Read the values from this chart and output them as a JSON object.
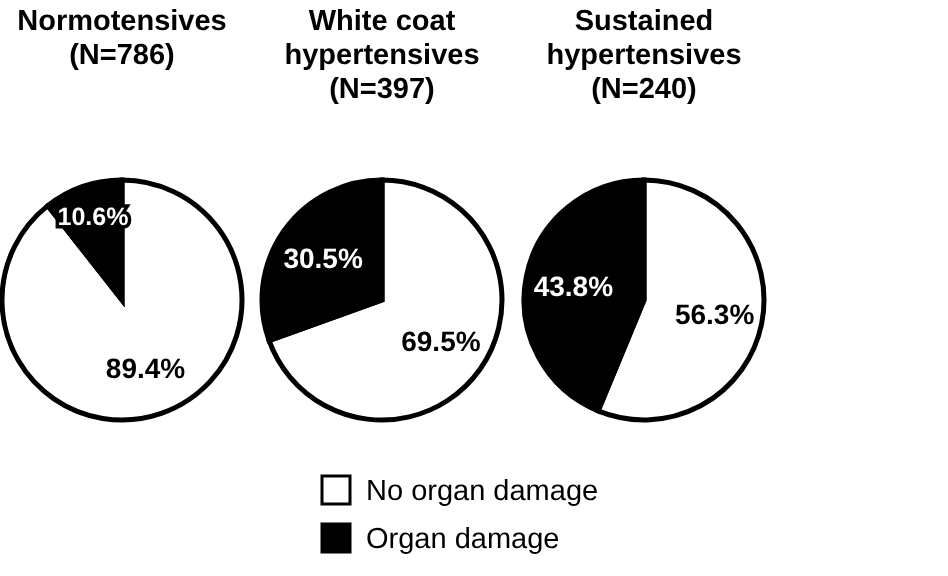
{
  "chart_data": [
    {
      "type": "pie",
      "title": "Normotensives",
      "subtitle": "(N=786)",
      "categories": [
        null,
        null
      ],
      "values": [
        89.4,
        10.6
      ],
      "colors": [
        "#ffffff",
        "#000000"
      ],
      "value_labels": [
        "89.4%",
        "10.6%"
      ]
    },
    {
      "type": "pie",
      "title": "White coat hypertensives",
      "subtitle": "(N=397)",
      "categories": [
        "No organ damage",
        "Organ damage"
      ],
      "values": [
        69.5,
        30.5
      ],
      "colors": [
        "#ffffff",
        "#000000"
      ],
      "value_labels": [
        "69.5%",
        "30.5%"
      ],
      "legend": "bottom"
    },
    {
      "type": "pie",
      "title": "Sustained hypertensives",
      "subtitle": "(N=240)",
      "categories": [
        null,
        null
      ],
      "values": [
        56.3,
        43.8
      ],
      "colors": [
        "#ffffff",
        "#000000"
      ],
      "value_labels": [
        "56.3%",
        "43.8%"
      ]
    }
  ]
}
